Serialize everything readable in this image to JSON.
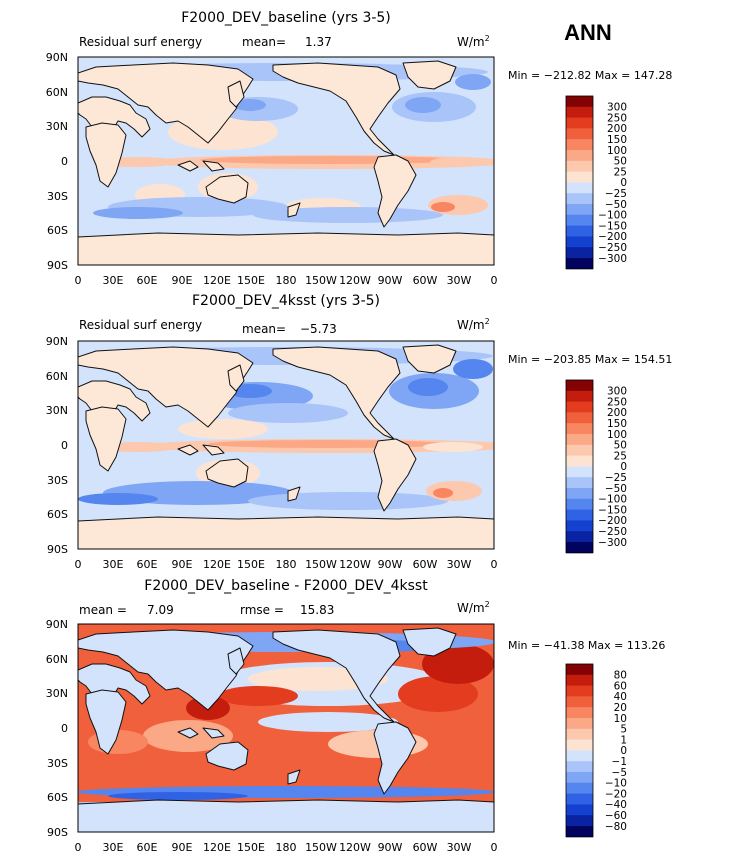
{
  "season": "ANN",
  "chart_data": [
    {
      "type": "heatmap",
      "title": "F2000_DEV_baseline (yrs 3-5)",
      "left_label": "Residual surf energy",
      "stat1_label": "mean=",
      "stat1_value": "1.37",
      "units": "W/m",
      "units_sup": "2",
      "min_max": "Min = −212.82  Max = 147.28",
      "min": -212.82,
      "max": 147.28,
      "mean": 1.37,
      "cmap": "diverging",
      "colorbar_levels": [
        "300",
        "250",
        "200",
        "150",
        "100",
        "50",
        "25",
        "0",
        "−25",
        "−50",
        "−100",
        "−150",
        "−200",
        "−250",
        "−300"
      ],
      "lat_ticks": [
        "90N",
        "60N",
        "30N",
        "0",
        "30S",
        "60S",
        "90S"
      ],
      "lon_ticks": [
        "0",
        "30E",
        "60E",
        "90E",
        "120E",
        "150E",
        "180",
        "150W",
        "120W",
        "90W",
        "60W",
        "30W",
        "0"
      ]
    },
    {
      "type": "heatmap",
      "title": "F2000_DEV_4ksst (yrs 3-5)",
      "left_label": "Residual surf energy",
      "stat1_label": "mean=",
      "stat1_value": "−5.73",
      "units": "W/m",
      "units_sup": "2",
      "min_max": "Min = −203.85  Max = 154.51",
      "min": -203.85,
      "max": 154.51,
      "mean": -5.73,
      "cmap": "diverging",
      "colorbar_levels": [
        "300",
        "250",
        "200",
        "150",
        "100",
        "50",
        "25",
        "0",
        "−25",
        "−50",
        "−100",
        "−150",
        "−200",
        "−250",
        "−300"
      ],
      "lat_ticks": [
        "90N",
        "60N",
        "30N",
        "0",
        "30S",
        "60S",
        "90S"
      ],
      "lon_ticks": [
        "0",
        "30E",
        "60E",
        "90E",
        "120E",
        "150E",
        "180",
        "150W",
        "120W",
        "90W",
        "60W",
        "30W",
        "0"
      ]
    },
    {
      "type": "heatmap",
      "title": "F2000_DEV_baseline - F2000_DEV_4ksst",
      "left_label": "mean =",
      "left_value": "7.09",
      "stat1_label": "rmse =",
      "stat1_value": "15.83",
      "units": "W/m",
      "units_sup": "2",
      "min_max": "Min = −41.38  Max = 113.26",
      "min": -41.38,
      "max": 113.26,
      "mean": 7.09,
      "rmse": 15.83,
      "cmap": "diverging",
      "colorbar_levels": [
        "80",
        "60",
        "40",
        "20",
        "10",
        "5",
        "1",
        "0",
        "−1",
        "−5",
        "−10",
        "−20",
        "−40",
        "−60",
        "−80"
      ],
      "lat_ticks": [
        "90N",
        "60N",
        "30N",
        "0",
        "30S",
        "60S",
        "90S"
      ],
      "lon_ticks": [
        "0",
        "30E",
        "60E",
        "90E",
        "120E",
        "150E",
        "180",
        "150W",
        "120W",
        "90W",
        "60W",
        "30W",
        "0"
      ]
    }
  ],
  "colors": {
    "cb16": [
      "#02025f",
      "#0a23a3",
      "#1541d1",
      "#2f62e5",
      "#5585ef",
      "#7fa5f5",
      "#a9c4f9",
      "#d3e3fb",
      "#fde4d2",
      "#fcc8ae",
      "#fba886",
      "#f78661",
      "#f0603c",
      "#e33c1e",
      "#c41d0d",
      "#830304"
    ],
    "land": "#fde8d8",
    "coast": "#111111"
  }
}
